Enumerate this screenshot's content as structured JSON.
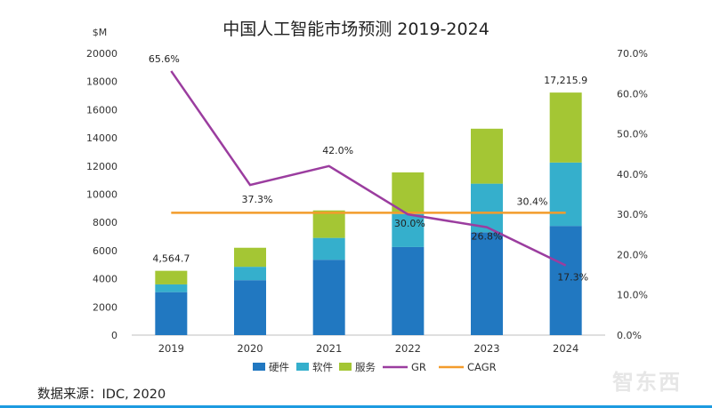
{
  "title": "中国人工智能市场预测 2019-2024",
  "source": "数据来源：IDC, 2020",
  "watermark": "智东西",
  "chart_data": {
    "type": "bar",
    "stacked": true,
    "title": "中国人工智能市场预测 2019-2024",
    "y_unit": "$M",
    "categories": [
      "2019",
      "2020",
      "2021",
      "2022",
      "2023",
      "2024"
    ],
    "ylim": [
      0,
      20000
    ],
    "y_ticks": [
      0,
      2000,
      4000,
      6000,
      8000,
      10000,
      12000,
      14000,
      16000,
      18000,
      20000
    ],
    "y2lim": [
      0,
      70
    ],
    "y2_ticks": [
      "0.0%",
      "10.0%",
      "20.0%",
      "30.0%",
      "40.0%",
      "50.0%",
      "60.0%",
      "70.0%"
    ],
    "series": [
      {
        "name": "硬件",
        "kind": "bar",
        "color": "#2178c1",
        "values": [
          3050,
          3900,
          5350,
          6250,
          7300,
          7750
        ]
      },
      {
        "name": "软件",
        "kind": "bar",
        "color": "#35afcc",
        "values": [
          550,
          950,
          1550,
          2350,
          3450,
          4500
        ]
      },
      {
        "name": "服务",
        "kind": "bar",
        "color": "#a4c634",
        "values": [
          964.7,
          1350,
          1950,
          2950,
          3900,
          4965.9
        ]
      },
      {
        "name": "GR",
        "kind": "line",
        "axis": "right",
        "color": "#9b3d9f",
        "values": [
          65.6,
          37.3,
          42.0,
          30.0,
          26.8,
          17.3
        ]
      },
      {
        "name": "CAGR",
        "kind": "line",
        "axis": "right",
        "color": "#f39c2b",
        "values": [
          30.4,
          30.4,
          30.4,
          30.4,
          30.4,
          30.4
        ]
      }
    ],
    "bar_total_labels": {
      "2019": "4,564.7",
      "2024": "17,215.9"
    },
    "gr_labels": [
      "65.6%",
      "37.3%",
      "42.0%",
      "30.0%",
      "26.8%",
      "17.3%"
    ],
    "cagr_label": "30.4%",
    "legend": [
      "硬件",
      "软件",
      "服务",
      "GR",
      "CAGR"
    ],
    "legend_position": "bottom",
    "grid": false
  }
}
